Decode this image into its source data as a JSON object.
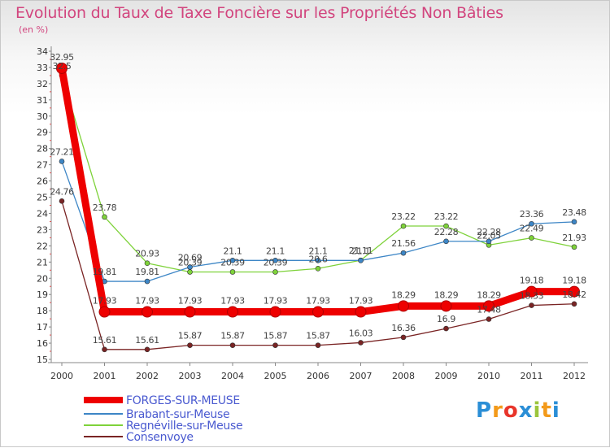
{
  "chart_data": {
    "type": "line",
    "title": "Evolution du Taux de Taxe Foncière sur les Propriétés Non Bâties",
    "subtitle": "(en %)",
    "x": [
      "2000",
      "2001",
      "2002",
      "2003",
      "2004",
      "2005",
      "2006",
      "2007",
      "2008",
      "2009",
      "2010",
      "2011",
      "2012"
    ],
    "ylim": [
      15,
      34
    ],
    "yticks": [
      15,
      16,
      17,
      18,
      19,
      20,
      21,
      22,
      23,
      24,
      25,
      26,
      27,
      28,
      29,
      30,
      31,
      32,
      33,
      34
    ],
    "grid": false,
    "legend_position": "bottom-left",
    "series": [
      {
        "name": "FORGES-SUR-MEUSE",
        "color": "#ee0000",
        "values": [
          32.95,
          17.93,
          17.93,
          17.93,
          17.93,
          17.93,
          17.93,
          17.93,
          18.29,
          18.29,
          18.29,
          19.18,
          19.18
        ],
        "labels": [
          "32.95",
          "17.93",
          "17.93",
          "17.93",
          "17.93",
          "17.93",
          "17.93",
          "17.93",
          "18.29",
          "18.29",
          "18.29",
          "19.18",
          "19.18"
        ]
      },
      {
        "name": "Brabant-sur-Meuse",
        "color": "#3d86c6",
        "values": [
          27.21,
          19.81,
          19.81,
          20.69,
          21.1,
          21.1,
          21.1,
          21.1,
          21.56,
          22.28,
          22.28,
          23.36,
          23.48
        ],
        "labels": [
          "27.21",
          "19.81",
          "19.81",
          "20.69",
          "21.1",
          "21.1",
          "21.1",
          "21.1",
          "21.56",
          "22.28",
          "22.28",
          "23.36",
          "23.48"
        ]
      },
      {
        "name": "Regnéville-sur-Meuse",
        "color": "#7ed23a",
        "values": [
          32.5,
          23.78,
          20.93,
          20.39,
          20.39,
          20.39,
          20.6,
          21.11,
          23.22,
          23.22,
          22.05,
          22.49,
          21.93
        ],
        "labels": [
          "32.5",
          "23.78",
          "20.93",
          "20.39",
          "20.39",
          "20.39",
          "20.6",
          "21.11",
          "23.22",
          "23.22",
          "22.05",
          "22.49",
          "21.93"
        ]
      },
      {
        "name": "Consenvoye",
        "color": "#7a2424",
        "values": [
          24.76,
          15.61,
          15.61,
          15.87,
          15.87,
          15.87,
          15.87,
          16.03,
          16.36,
          16.9,
          17.48,
          18.33,
          18.42
        ],
        "labels": [
          "24.76",
          "15.61",
          "15.61",
          "15.87",
          "15.87",
          "15.87",
          "15.87",
          "16.03",
          "16.36",
          "16.9",
          "17.48",
          "18.33",
          "18.42"
        ]
      }
    ]
  },
  "branding": {
    "letters": [
      "P",
      "r",
      "o",
      "x",
      "i",
      "t",
      "i"
    ],
    "colors": [
      "#2a8ed6",
      "#f39a1a",
      "#e8352b",
      "#2a8ed6",
      "#9bc53d",
      "#f39a1a",
      "#2a8ed6"
    ]
  }
}
